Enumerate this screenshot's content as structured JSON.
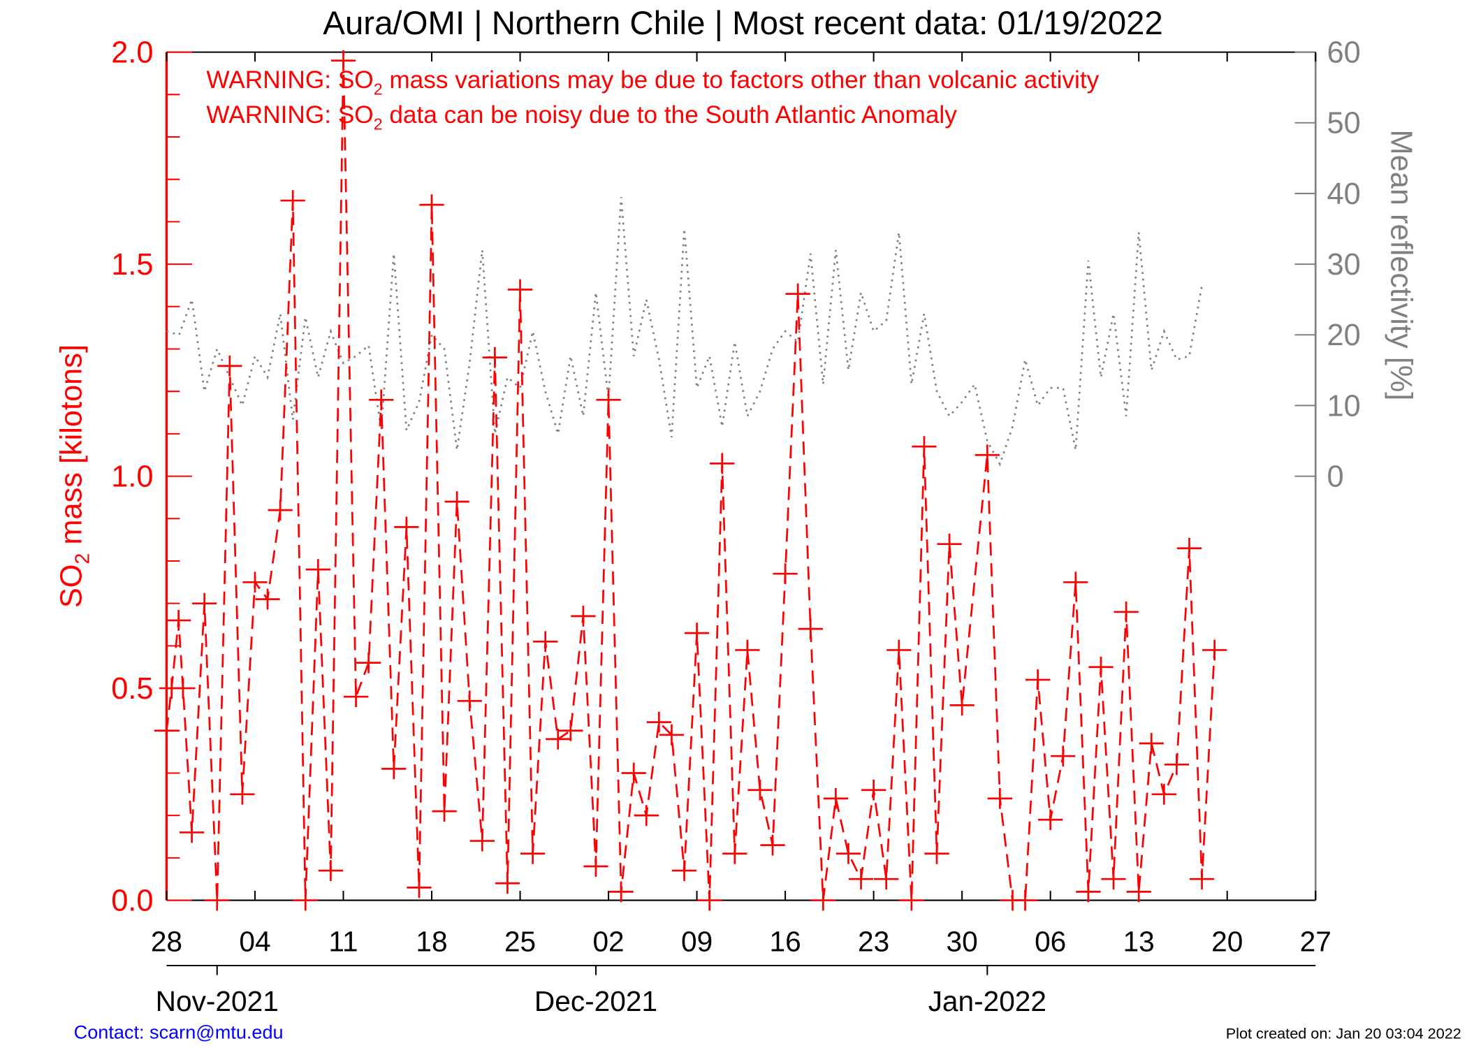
{
  "chart_data": {
    "type": "line",
    "title": "Aura/OMI | Northern Chile | Most recent data: 01/19/2022",
    "warnings": [
      {
        "prefix": "WARNING: SO",
        "sub": "2",
        "rest": " mass variations may be due to factors other than volcanic activity"
      },
      {
        "prefix": "WARNING: SO",
        "sub": "2",
        "rest": " data can be noisy due to the South Atlantic Anomaly"
      }
    ],
    "ylabel": {
      "prefix": "SO",
      "sub": "2",
      "rest": " mass [kilotons]"
    },
    "y2label": "Mean reflectivity [%]",
    "ylim": [
      0,
      2.0
    ],
    "y_ticks": [
      "0.0",
      "0.5",
      "1.0",
      "1.5",
      "2.0"
    ],
    "y2lim": [
      0,
      60
    ],
    "y2_ticks": [
      "0",
      "10",
      "20",
      "30",
      "40",
      "50",
      "60"
    ],
    "x_start": "2021-10-28",
    "x_range_days": [
      0,
      91
    ],
    "x_tick_labels": [
      "28",
      "04",
      "11",
      "18",
      "25",
      "02",
      "09",
      "16",
      "23",
      "30",
      "06",
      "13",
      "20",
      "27"
    ],
    "month_labels": [
      {
        "label": "Nov-2021",
        "day": 4
      },
      {
        "label": "Dec-2021",
        "day": 34
      },
      {
        "label": "Jan-2022",
        "day": 65
      }
    ],
    "colors": {
      "so2": "#ff0000",
      "reflectivity": "#808080",
      "contact": "#0000ff"
    },
    "series": [
      {
        "name": "SO2 mass [kt]",
        "style": "dashed with + markers",
        "points": [
          [
            0,
            0.4
          ],
          [
            0.4,
            0.5
          ],
          [
            0.95,
            0.66
          ],
          [
            1.3,
            0.5
          ],
          [
            2,
            0.16
          ],
          [
            3,
            0.7
          ],
          [
            4,
            0.0
          ],
          [
            5,
            1.26
          ],
          [
            6,
            0.25
          ],
          [
            7,
            0.75
          ],
          [
            8,
            0.71
          ],
          [
            9,
            0.92
          ],
          [
            10,
            1.65
          ],
          [
            11,
            0.0
          ],
          [
            12,
            0.78
          ],
          [
            13,
            0.07
          ],
          [
            14,
            1.98
          ],
          [
            15,
            0.48
          ],
          [
            16,
            0.56
          ],
          [
            17,
            1.18
          ],
          [
            18,
            0.31
          ],
          [
            19,
            0.88
          ],
          [
            20,
            0.03
          ],
          [
            21,
            1.64
          ],
          [
            22,
            0.21
          ],
          [
            23,
            0.94
          ],
          [
            24,
            0.47
          ],
          [
            25,
            0.14
          ],
          [
            26,
            1.28
          ],
          [
            27,
            0.04
          ],
          [
            28,
            1.44
          ],
          [
            29,
            0.11
          ],
          [
            30,
            0.61
          ],
          [
            31,
            0.38
          ],
          [
            32,
            0.4
          ],
          [
            33,
            0.67
          ],
          [
            34,
            0.08
          ],
          [
            35,
            1.18
          ],
          [
            36,
            0.02
          ],
          [
            37,
            0.3
          ],
          [
            38,
            0.2
          ],
          [
            39,
            0.42
          ],
          [
            40,
            0.39
          ],
          [
            41,
            0.07
          ],
          [
            42,
            0.63
          ],
          [
            43,
            0.0
          ],
          [
            44,
            1.03
          ],
          [
            45,
            0.11
          ],
          [
            46,
            0.59
          ],
          [
            47,
            0.26
          ],
          [
            48,
            0.13
          ],
          [
            49,
            0.77
          ],
          [
            50,
            1.43
          ],
          [
            51,
            0.64
          ],
          [
            52,
            0.0
          ],
          [
            53,
            0.24
          ],
          [
            54,
            0.11
          ],
          [
            55,
            0.05
          ],
          [
            56,
            0.26
          ],
          [
            57,
            0.05
          ],
          [
            58,
            0.59
          ],
          [
            59,
            0.0
          ],
          [
            60,
            1.07
          ],
          [
            61,
            0.11
          ],
          [
            62,
            0.84
          ],
          [
            63,
            0.46
          ],
          [
            65,
            1.05
          ],
          [
            66,
            0.24
          ],
          [
            67,
            0.0
          ],
          [
            68,
            0.0
          ],
          [
            69,
            0.52
          ],
          [
            70,
            0.19
          ],
          [
            71,
            0.34
          ],
          [
            72,
            0.75
          ],
          [
            73,
            0.02
          ],
          [
            74,
            0.55
          ],
          [
            75,
            0.05
          ],
          [
            76,
            0.68
          ],
          [
            77,
            0.02
          ],
          [
            78,
            0.37
          ],
          [
            79,
            0.25
          ],
          [
            80,
            0.32
          ],
          [
            81,
            0.83
          ],
          [
            82,
            0.05
          ],
          [
            83,
            0.59
          ]
        ]
      },
      {
        "name": "Mean reflectivity [%]",
        "style": "dotted",
        "axis": "right",
        "points": [
          [
            0,
            20.5
          ],
          [
            1,
            20
          ],
          [
            2,
            25
          ],
          [
            3,
            12
          ],
          [
            4,
            18
          ],
          [
            5,
            14
          ],
          [
            6,
            10
          ],
          [
            7,
            17
          ],
          [
            8,
            14
          ],
          [
            9,
            23
          ],
          [
            10,
            8
          ],
          [
            11,
            22.5
          ],
          [
            12,
            14
          ],
          [
            13,
            20.5
          ],
          [
            14,
            16
          ],
          [
            15,
            17
          ],
          [
            16,
            18.5
          ],
          [
            17,
            6.5
          ],
          [
            18,
            31.5
          ],
          [
            19,
            6.5
          ],
          [
            20,
            10.5
          ],
          [
            21,
            20
          ],
          [
            22,
            18
          ],
          [
            23,
            3.7
          ],
          [
            24,
            16
          ],
          [
            25,
            32
          ],
          [
            26,
            6
          ],
          [
            27,
            14
          ],
          [
            28,
            12.5
          ],
          [
            29,
            20.5
          ],
          [
            30,
            12
          ],
          [
            31,
            6
          ],
          [
            32,
            17
          ],
          [
            33,
            8.5
          ],
          [
            34,
            26
          ],
          [
            35,
            11
          ],
          [
            36,
            39.5
          ],
          [
            37,
            17
          ],
          [
            38,
            25
          ],
          [
            39,
            16.5
          ],
          [
            40,
            5.5
          ],
          [
            41,
            35
          ],
          [
            42,
            12.5
          ],
          [
            43,
            17
          ],
          [
            44,
            7
          ],
          [
            45,
            19
          ],
          [
            46,
            8.5
          ],
          [
            47,
            12
          ],
          [
            48,
            18
          ],
          [
            49,
            20.5
          ],
          [
            50,
            19
          ],
          [
            51,
            31.5
          ],
          [
            52,
            13
          ],
          [
            53,
            32
          ],
          [
            54,
            15
          ],
          [
            55,
            26
          ],
          [
            56,
            20.5
          ],
          [
            57,
            22
          ],
          [
            58,
            34.5
          ],
          [
            59,
            13
          ],
          [
            60,
            23
          ],
          [
            61,
            12
          ],
          [
            62,
            8.5
          ],
          [
            63,
            10.5
          ],
          [
            64,
            13
          ],
          [
            65,
            5
          ],
          [
            66,
            1.7
          ],
          [
            67,
            7
          ],
          [
            68,
            16.5
          ],
          [
            69,
            10
          ],
          [
            70,
            12.5
          ],
          [
            71,
            12.5
          ],
          [
            72,
            3.7
          ],
          [
            73,
            30.5
          ],
          [
            74,
            14
          ],
          [
            75,
            23
          ],
          [
            76,
            8.5
          ],
          [
            77,
            34.5
          ],
          [
            78,
            15
          ],
          [
            79,
            20.5
          ],
          [
            80,
            16.5
          ],
          [
            81,
            17
          ],
          [
            82,
            27
          ]
        ]
      }
    ],
    "grid": false
  },
  "footer": {
    "contact": "Contact: scarn@mtu.edu",
    "created": "Plot created on: Jan 20 03:04 2022"
  }
}
